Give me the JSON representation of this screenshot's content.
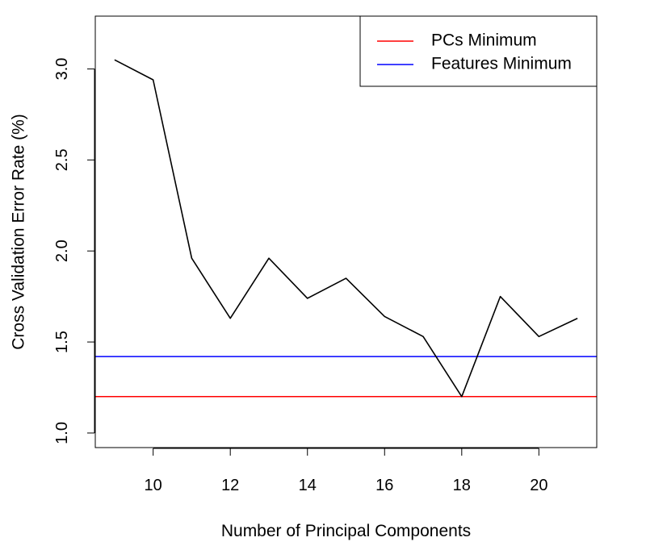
{
  "chart_data": {
    "type": "line",
    "title": "",
    "xlabel": "Number of Principal Components",
    "ylabel": "Cross Validation Error Rate (%)",
    "xlim": [
      8.5,
      21.5
    ],
    "ylim": [
      0.92,
      3.29
    ],
    "x_ticks": [
      10,
      12,
      14,
      16,
      18,
      20
    ],
    "y_ticks": [
      1.0,
      1.5,
      2.0,
      2.5,
      3.0
    ],
    "x_tick_labels": [
      "10",
      "12",
      "14",
      "16",
      "18",
      "20"
    ],
    "y_tick_labels": [
      "1.0",
      "1.5",
      "2.0",
      "2.5",
      "3.0"
    ],
    "grid": false,
    "legend_position": "top-right",
    "series": [
      {
        "color": "#000000",
        "x": [
          9,
          10,
          11,
          12,
          13,
          14,
          15,
          16,
          17,
          18,
          19,
          20,
          21
        ],
        "y": [
          3.05,
          2.94,
          1.96,
          1.63,
          1.96,
          1.74,
          1.85,
          1.64,
          1.53,
          1.2,
          1.75,
          1.53,
          1.63
        ]
      }
    ],
    "hlines": [
      {
        "name": "PCs Minimum",
        "value": 1.2,
        "color": "#ff0000"
      },
      {
        "name": "Features Minimum",
        "value": 1.42,
        "color": "#0000ff"
      }
    ]
  }
}
